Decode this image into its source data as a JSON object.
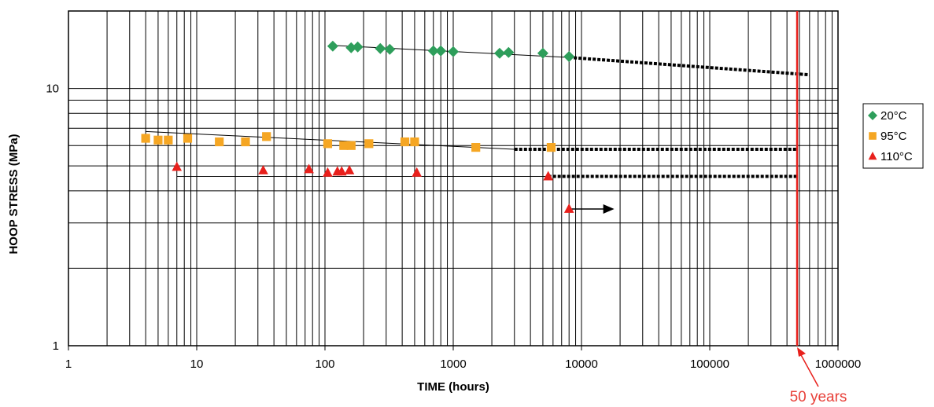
{
  "chart_data": {
    "type": "scatter",
    "xlabel": "TIME (hours)",
    "ylabel": "HOOP STRESS (MPa)",
    "x_scale": "log",
    "y_scale": "log",
    "xlim": [
      1,
      1000000
    ],
    "ylim": [
      1,
      20
    ],
    "x_ticks": [
      {
        "value": 1,
        "label": "1"
      },
      {
        "value": 10,
        "label": "10"
      },
      {
        "value": 100,
        "label": "100"
      },
      {
        "value": 1000,
        "label": "1000"
      },
      {
        "value": 10000,
        "label": "10000"
      },
      {
        "value": 100000,
        "label": "100000"
      },
      {
        "value": 1000000,
        "label": "1000000"
      }
    ],
    "y_ticks": [
      {
        "value": 1,
        "label": "1"
      },
      {
        "value": 10,
        "label": "10"
      }
    ],
    "grid": true,
    "legend_position": "right",
    "series": [
      {
        "name": "20°C",
        "marker": "diamond",
        "color": "#2e9e5b",
        "x": [
          115,
          160,
          180,
          270,
          320,
          700,
          800,
          1000,
          2300,
          2700,
          5000,
          8000
        ],
        "y": [
          14.6,
          14.4,
          14.5,
          14.3,
          14.2,
          14.0,
          14.0,
          13.9,
          13.7,
          13.8,
          13.7,
          13.3
        ],
        "fit": {
          "x": [
            115,
            8000
          ],
          "y": [
            14.7,
            13.2
          ]
        },
        "extrapolation": {
          "x": [
            8000,
            600000
          ],
          "y": [
            13.2,
            11.3
          ]
        }
      },
      {
        "name": "95°C",
        "marker": "square",
        "color": "#f5a623",
        "x": [
          4,
          5,
          6,
          8.5,
          15,
          24,
          35,
          105,
          140,
          160,
          220,
          420,
          500,
          1500,
          5800
        ],
        "y": [
          6.4,
          6.3,
          6.3,
          6.4,
          6.2,
          6.2,
          6.5,
          6.1,
          6.0,
          6.0,
          6.1,
          6.2,
          6.2,
          5.9,
          5.9
        ],
        "fit": {
          "x": [
            4,
            3000
          ],
          "y": [
            6.8,
            5.8
          ]
        },
        "extrapolation": {
          "x": [
            3000,
            480000
          ],
          "y": [
            5.8,
            5.8
          ]
        }
      },
      {
        "name": "110°C",
        "marker": "triangle",
        "color": "#e8201c",
        "x": [
          7,
          33,
          75,
          105,
          125,
          135,
          155,
          520,
          5500
        ],
        "y": [
          4.95,
          4.8,
          4.85,
          4.7,
          4.75,
          4.75,
          4.8,
          4.7,
          4.55
        ],
        "fit": {
          "x": [
            7,
            5500
          ],
          "y": [
            4.55,
            4.55
          ]
        },
        "extrapolation": {
          "x": [
            5500,
            480000
          ],
          "y": [
            4.55,
            4.55
          ]
        },
        "runout": {
          "x": 8000,
          "y": 3.4,
          "arrow_to_x": 18000
        }
      }
    ],
    "annotations": [
      {
        "text": "50 years",
        "x": 480000,
        "color": "#e8201c"
      }
    ]
  }
}
